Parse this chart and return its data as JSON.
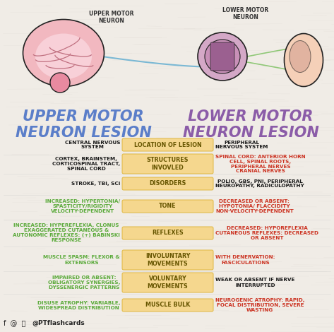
{
  "bg_color": "#f0ece6",
  "title_left": "UPPER MOTOR\nNEURON LESION",
  "title_right": "LOWER MOTOR\nNEURON LESION",
  "title_color_left": "#5b7ec9",
  "title_color_right": "#8b5ca8",
  "middle_labels": [
    "LOCATION OF LESION",
    "STRUCTURES\nINVOVLED",
    "DISORDERS",
    "TONE",
    "REFLEXES",
    "INVOLUNTARY\nMOVEMENTS",
    "VOLUNTARY\nMOVEMENTS",
    "MUSCLE BULK"
  ],
  "middle_box_color": "#f5d78e",
  "middle_box_edge": "#e0b840",
  "left_entries": [
    "CENTRAL NERVOUS\nSYSTEM",
    "CORTEX, BRAINSTEM,\nCORTICOSPINAL TRACT,\nSPINAL CORD",
    "STROKE, TBI, SCi",
    "INCREASED: HYPERTONIA/\nSPASTICITY/RIGIDITY\nVELOCITY-DEPENDENT",
    "INCREASED: HYPEREFLEXIA, CLONUS\nEXAGGERATED CUTANEOUS &\nAUTONOMIC REFLEXES: (+) BABINSKI\nRESPONSE",
    "MUSCLE SPASM: FLEXOR &\nEXTENSORS",
    "IMPAIRED OR ABSENT:\nOBLIGATORY SYNERGIES,\nDYSSENERGIC PATTERNS",
    "DISUSE ATROPHY: VARIABLE,\nWIDESPREAD DISTRIBUTION"
  ],
  "right_entries": [
    "PERIPHERAL\nNERVOUS SYSTEM",
    "SPINAL CORD: ANTERIOR HORN\nCELL, SPINAL ROOTS,\nPERIPHERAL NERVES\nCRANIAL NERVES",
    "POLIO, GBS, PNi, PERIPHERAL\nNEUROPATHY, RADICULOPATHY",
    "DECREASED OR ABSENT:\nHYPOTONIA/ FLACCIDITY\nNON-VELOCITY-DEPENDENT",
    "DECREASED: HYPOREFLEXIA\nCUTANEOUS REFLEXES: DECREASED\nOR ABSENT",
    "WITH DENERVATION:\nFASCICULATIONS",
    "WEAK OR ABSENT IF NERVE\nINTERRUPTED",
    "NEUROGENIC ATROPHY: RAPID,\nFOCAL DISTRIBUTION, SEVERE\nWASTING"
  ],
  "left_colors": [
    "#1a1a1a",
    "#1a1a1a",
    "#1a1a1a",
    "#5aaa3a",
    "#5aaa3a",
    "#5aaa3a",
    "#5aaa3a",
    "#5aaa3a"
  ],
  "right_colors": [
    "#1a1a1a",
    "#cc3322",
    "#1a1a1a",
    "#cc3322",
    "#cc3322",
    "#cc3322",
    "#1a1a1a",
    "#cc3322"
  ],
  "footer_text": "@PTflashcards",
  "upper_motor_label": "UPPER MOTOR\nNEURON",
  "lower_motor_label": "LOWER MOTOR\nNEURON"
}
